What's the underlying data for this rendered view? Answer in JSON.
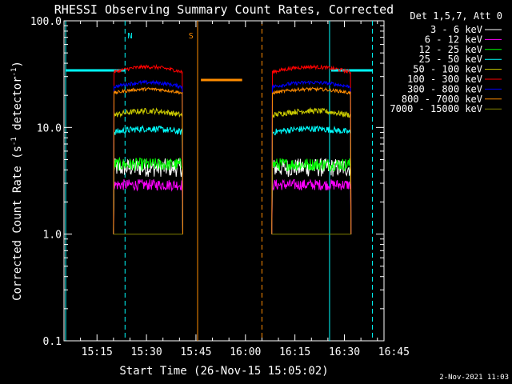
{
  "chart_data": {
    "type": "line",
    "title": "RHESSI Observing Summary Count Rates, Corrected",
    "xlabel": "Start Time (26-Nov-15 15:05:02)",
    "ylabel_main": "Corrected Count Rate (s",
    "ylabel_sup1": "-1",
    "ylabel_mid": " detector",
    "ylabel_sup2": "-1",
    "ylabel_end": ")",
    "yscale": "log",
    "ylim": [
      0.1,
      100.0
    ],
    "xlim_minutes": [
      5.0,
      102.0
    ],
    "y_ticks": [
      {
        "v": 0.1,
        "label": "0.1"
      },
      {
        "v": 1.0,
        "label": "1.0"
      },
      {
        "v": 10.0,
        "label": "10.0"
      },
      {
        "v": 100.0,
        "label": "100.0"
      }
    ],
    "x_ticks": [
      {
        "m": 15,
        "label": "15:15"
      },
      {
        "m": 30,
        "label": "15:30"
      },
      {
        "m": 45,
        "label": "15:45"
      },
      {
        "m": 60,
        "label": "16:00"
      },
      {
        "m": 75,
        "label": "16:15"
      },
      {
        "m": 90,
        "label": "16:30"
      },
      {
        "m": 105,
        "label": "16:45"
      }
    ],
    "legend_title": "Det 1,5,7, Att 0",
    "legend_placement": "right",
    "segments": [
      [
        20.0,
        41.0
      ],
      [
        68.0,
        92.0
      ]
    ],
    "series": [
      {
        "name": "3 - 6 keV",
        "color": "#ffffff",
        "base": 4.2,
        "slope": 0.0,
        "noise": 0.2
      },
      {
        "name": "6 - 12 keV",
        "color": "#ff00ff",
        "base": 2.9,
        "slope": 0.0,
        "noise": 0.12
      },
      {
        "name": "12 - 25 keV",
        "color": "#00ff00",
        "base": 4.5,
        "slope": 0.0,
        "noise": 0.14
      },
      {
        "name": "25 - 50 keV",
        "color": "#00ffff",
        "base": 9.0,
        "slope": 0.08,
        "noise": 0.07
      },
      {
        "name": "50 - 100 keV",
        "color": "#cccc00",
        "base": 13.0,
        "slope": 0.1,
        "noise": 0.06
      },
      {
        "name": "100 - 300 keV",
        "color": "#ff0000",
        "base": 33.0,
        "slope": 0.12,
        "noise": 0.04
      },
      {
        "name": "300 - 800 keV",
        "color": "#0000ff",
        "base": 24.0,
        "slope": 0.1,
        "noise": 0.04
      },
      {
        "name": "800 - 7000 keV",
        "color": "#ff8c00",
        "base": 21.0,
        "slope": 0.09,
        "noise": 0.035
      },
      {
        "name": "7000 - 15000 keV",
        "color": "#808000",
        "base": 1.0,
        "slope": 0.0,
        "noise": 0.0
      }
    ],
    "annotations": [
      {
        "type": "vline",
        "m": 5.5,
        "color": "#00ffff",
        "style": "solid"
      },
      {
        "type": "vline",
        "m": 23.5,
        "color": "#00ffff",
        "style": "dashed"
      },
      {
        "type": "hbar",
        "m0": 5.5,
        "m1": 23.5,
        "y": 66,
        "color": "#00ffff"
      },
      {
        "type": "label",
        "m": 25.0,
        "text": "N",
        "color": "#00ffff"
      },
      {
        "type": "vline",
        "m": 45.5,
        "color": "#ff8c00",
        "style": "solid"
      },
      {
        "type": "vline",
        "m": 65.0,
        "color": "#ff8c00",
        "style": "dashed"
      },
      {
        "type": "hbar",
        "m0": 46.5,
        "m1": 59.0,
        "y": 78,
        "color": "#ff8c00"
      },
      {
        "type": "label",
        "m": 43.5,
        "text": "S",
        "color": "#ff8c00"
      },
      {
        "type": "vline",
        "m": 85.5,
        "color": "#00ffff",
        "style": "solid"
      },
      {
        "type": "vline",
        "m": 98.5,
        "color": "#00ffff",
        "style": "dashed"
      },
      {
        "type": "hbar",
        "m0": 86.0,
        "m1": 98.5,
        "y": 66,
        "color": "#00ffff"
      }
    ],
    "timestamp": "2-Nov-2021 11:03"
  }
}
